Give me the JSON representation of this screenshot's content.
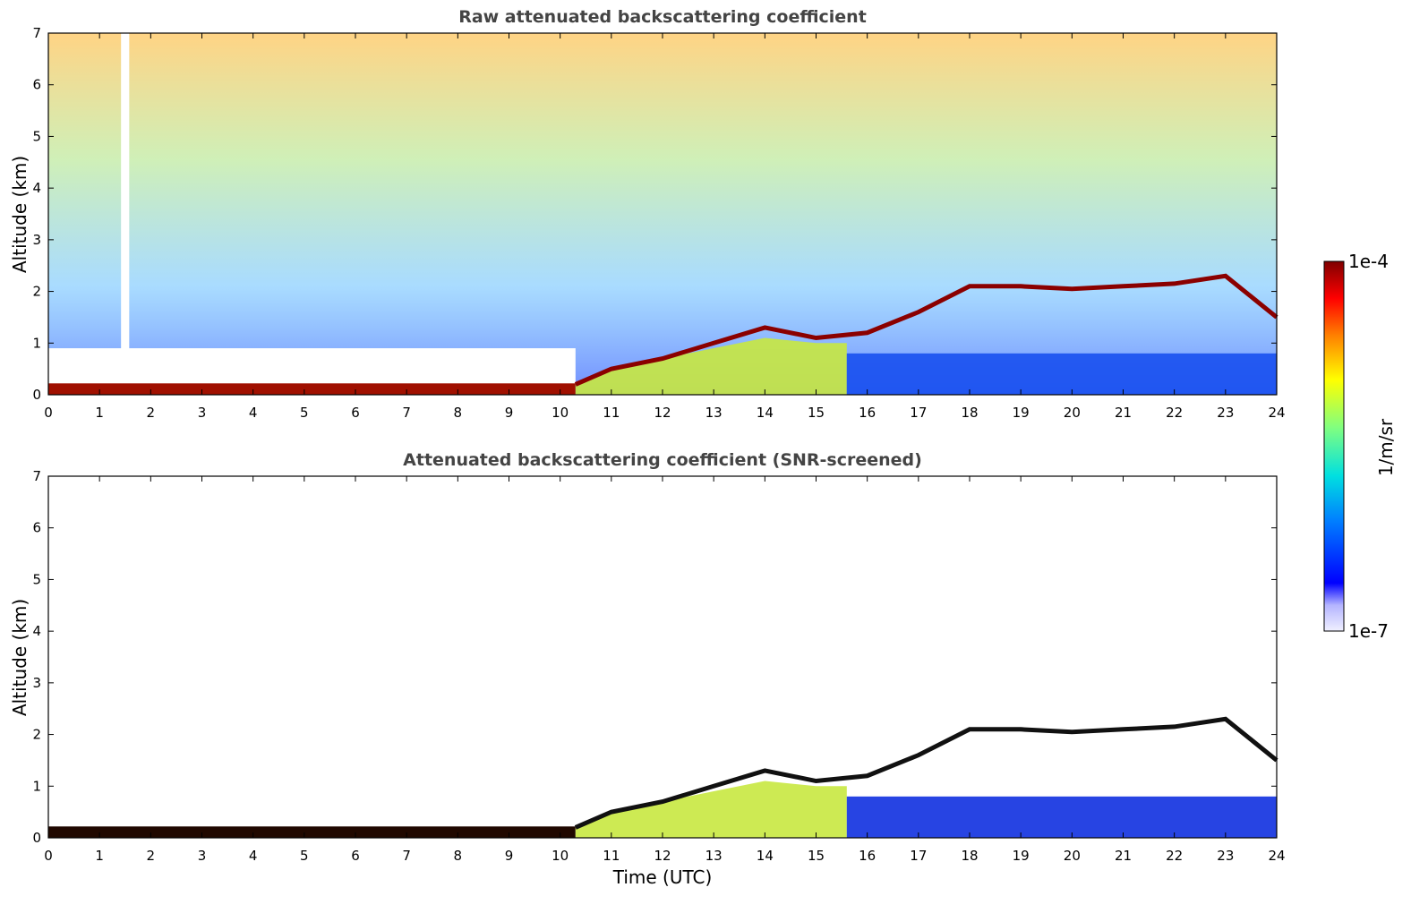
{
  "chart_data": [
    {
      "type": "heatmap",
      "title": "Raw attenuated backscattering coefficient",
      "xlabel": "",
      "ylabel": "Altitude (km)",
      "xlim": [
        0,
        24
      ],
      "ylim": [
        0,
        7
      ],
      "xticks": [
        0,
        1,
        2,
        3,
        4,
        5,
        6,
        7,
        8,
        9,
        10,
        11,
        12,
        13,
        14,
        15,
        16,
        17,
        18,
        19,
        20,
        21,
        22,
        23,
        24
      ],
      "yticks": [
        0,
        1,
        2,
        3,
        4,
        5,
        6,
        7
      ],
      "colorscale": "log",
      "cloud_layer_top_km": [
        {
          "time": 10.3,
          "altitude": 0.2
        },
        {
          "time": 11.0,
          "altitude": 0.5
        },
        {
          "time": 12.0,
          "altitude": 0.7
        },
        {
          "time": 13.0,
          "altitude": 1.0
        },
        {
          "time": 14.0,
          "altitude": 1.3
        },
        {
          "time": 15.0,
          "altitude": 1.1
        },
        {
          "time": 16.0,
          "altitude": 1.2
        },
        {
          "time": 17.0,
          "altitude": 1.6
        },
        {
          "time": 18.0,
          "altitude": 2.1
        },
        {
          "time": 19.0,
          "altitude": 2.1
        },
        {
          "time": 20.0,
          "altitude": 2.05
        },
        {
          "time": 21.0,
          "altitude": 2.1
        },
        {
          "time": 22.0,
          "altitude": 2.15
        },
        {
          "time": 23.0,
          "altitude": 2.3
        },
        {
          "time": 24.0,
          "altitude": 1.5
        }
      ]
    },
    {
      "type": "heatmap",
      "title": "Attenuated backscattering coefficient (SNR-screened)",
      "xlabel": "Time (UTC)",
      "ylabel": "Altitude (km)",
      "xlim": [
        0,
        24
      ],
      "ylim": [
        0,
        7
      ],
      "xticks": [
        0,
        1,
        2,
        3,
        4,
        5,
        6,
        7,
        8,
        9,
        10,
        11,
        12,
        13,
        14,
        15,
        16,
        17,
        18,
        19,
        20,
        21,
        22,
        23,
        24
      ],
      "yticks": [
        0,
        1,
        2,
        3,
        4,
        5,
        6,
        7
      ],
      "colorscale": "log"
    }
  ],
  "colorbar": {
    "label": "1/m/sr",
    "max_label": "1e-4",
    "min_label": "1e-7",
    "colors": [
      "#f0f0ff",
      "#b4b4ff",
      "#0000ff",
      "#0080ff",
      "#00e0e0",
      "#80ff80",
      "#ffff00",
      "#ff8000",
      "#ff0000",
      "#7f0000"
    ]
  }
}
